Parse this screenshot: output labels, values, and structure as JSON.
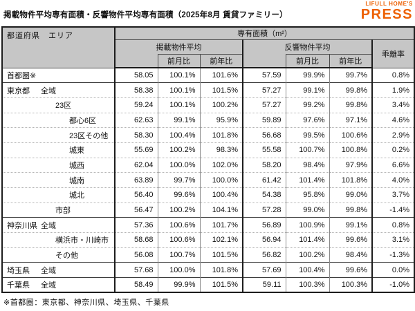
{
  "page": {
    "title": "掲載物件平均専有面積・反響物件平均専有面積（2025年8月 賃貸ファミリー）",
    "footnote": "※首都圏：東京都、神奈川県、埼玉県、千葉県"
  },
  "logo": {
    "line1": "LIFULL HOME'S",
    "line2": "PRESS",
    "color": "#ED6103"
  },
  "header": {
    "region": "都道府県　エリア",
    "unit": "専有面積（m²）",
    "listed_group": "掲載物件平均",
    "inquiry_group": "反響物件平均",
    "mom": "前月比",
    "yoy": "前年比",
    "divergence": "乖離率"
  },
  "chart_data": {
    "type": "table",
    "title": "掲載物件平均専有面積・反響物件平均専有面積（2025年8月 賃貸ファミリー）",
    "unit_header": "専有面積（m²）",
    "column_groups": [
      "掲載物件平均",
      "反響物件平均",
      "乖離率"
    ],
    "columns": [
      "都道府県/エリア",
      "掲載物件平均",
      "掲載前月比",
      "掲載前年比",
      "反響物件平均",
      "反響前月比",
      "反響前年比",
      "乖離率"
    ],
    "footnote": "※首都圏：東京都、神奈川県、埼玉県、千葉県",
    "rows": [
      {
        "pref": "首都圏※",
        "area": "",
        "indent": 0,
        "sep": "none",
        "listed": "58.05",
        "listed_mom": "100.1%",
        "listed_yoy": "101.6%",
        "inq": "57.59",
        "inq_mom": "99.9%",
        "inq_yoy": "99.7%",
        "div": "0.8%"
      },
      {
        "pref": "東京都",
        "area": "全域",
        "indent": 1,
        "sep": "solid",
        "listed": "58.38",
        "listed_mom": "100.1%",
        "listed_yoy": "101.5%",
        "inq": "57.27",
        "inq_mom": "99.1%",
        "inq_yoy": "99.8%",
        "div": "1.9%"
      },
      {
        "pref": "",
        "area": "23区",
        "indent": 2,
        "sep": "dotted",
        "listed": "59.24",
        "listed_mom": "100.1%",
        "listed_yoy": "100.2%",
        "inq": "57.27",
        "inq_mom": "99.2%",
        "inq_yoy": "99.8%",
        "div": "3.4%"
      },
      {
        "pref": "",
        "area": "都心6区",
        "indent": 3,
        "sep": "dotted",
        "listed": "62.63",
        "listed_mom": "99.1%",
        "listed_yoy": "95.9%",
        "inq": "59.89",
        "inq_mom": "97.6%",
        "inq_yoy": "97.1%",
        "div": "4.6%"
      },
      {
        "pref": "",
        "area": "23区その他",
        "indent": 3,
        "sep": "dotted",
        "listed": "58.30",
        "listed_mom": "100.4%",
        "listed_yoy": "101.8%",
        "inq": "56.68",
        "inq_mom": "99.5%",
        "inq_yoy": "100.6%",
        "div": "2.9%"
      },
      {
        "pref": "",
        "area": "城東",
        "indent": 3,
        "sep": "dotted",
        "listed": "55.69",
        "listed_mom": "100.2%",
        "listed_yoy": "98.3%",
        "inq": "55.58",
        "inq_mom": "100.7%",
        "inq_yoy": "100.8%",
        "div": "0.2%"
      },
      {
        "pref": "",
        "area": "城西",
        "indent": 3,
        "sep": "dotted",
        "listed": "62.04",
        "listed_mom": "100.0%",
        "listed_yoy": "102.0%",
        "inq": "58.20",
        "inq_mom": "98.4%",
        "inq_yoy": "97.9%",
        "div": "6.6%"
      },
      {
        "pref": "",
        "area": "城南",
        "indent": 3,
        "sep": "dotted",
        "listed": "63.89",
        "listed_mom": "99.7%",
        "listed_yoy": "100.0%",
        "inq": "61.42",
        "inq_mom": "101.4%",
        "inq_yoy": "101.8%",
        "div": "4.0%"
      },
      {
        "pref": "",
        "area": "城北",
        "indent": 3,
        "sep": "dotted",
        "listed": "56.40",
        "listed_mom": "99.6%",
        "listed_yoy": "100.4%",
        "inq": "54.38",
        "inq_mom": "95.8%",
        "inq_yoy": "99.0%",
        "div": "3.7%"
      },
      {
        "pref": "",
        "area": "市部",
        "indent": 2,
        "sep": "dotted",
        "listed": "56.47",
        "listed_mom": "100.2%",
        "listed_yoy": "104.1%",
        "inq": "57.28",
        "inq_mom": "99.0%",
        "inq_yoy": "99.8%",
        "div": "-1.4%"
      },
      {
        "pref": "神奈川県",
        "area": "全域",
        "indent": 1,
        "sep": "solid",
        "listed": "57.36",
        "listed_mom": "100.6%",
        "listed_yoy": "101.7%",
        "inq": "56.89",
        "inq_mom": "100.9%",
        "inq_yoy": "99.1%",
        "div": "0.8%"
      },
      {
        "pref": "",
        "area": "横浜市・川崎市",
        "indent": 2,
        "sep": "dotted",
        "listed": "58.68",
        "listed_mom": "100.6%",
        "listed_yoy": "102.1%",
        "inq": "56.94",
        "inq_mom": "101.4%",
        "inq_yoy": "99.6%",
        "div": "3.1%"
      },
      {
        "pref": "",
        "area": "その他",
        "indent": 2,
        "sep": "dotted",
        "listed": "56.08",
        "listed_mom": "100.7%",
        "listed_yoy": "101.5%",
        "inq": "56.82",
        "inq_mom": "100.2%",
        "inq_yoy": "98.4%",
        "div": "-1.3%"
      },
      {
        "pref": "埼玉県",
        "area": "全域",
        "indent": 1,
        "sep": "solid",
        "listed": "57.68",
        "listed_mom": "100.0%",
        "listed_yoy": "101.8%",
        "inq": "57.69",
        "inq_mom": "100.4%",
        "inq_yoy": "99.6%",
        "div": "0.0%"
      },
      {
        "pref": "千葉県",
        "area": "全域",
        "indent": 1,
        "sep": "solid",
        "listed": "58.49",
        "listed_mom": "99.9%",
        "listed_yoy": "101.5%",
        "inq": "59.11",
        "inq_mom": "100.3%",
        "inq_yoy": "100.3%",
        "div": "-1.0%"
      }
    ]
  }
}
